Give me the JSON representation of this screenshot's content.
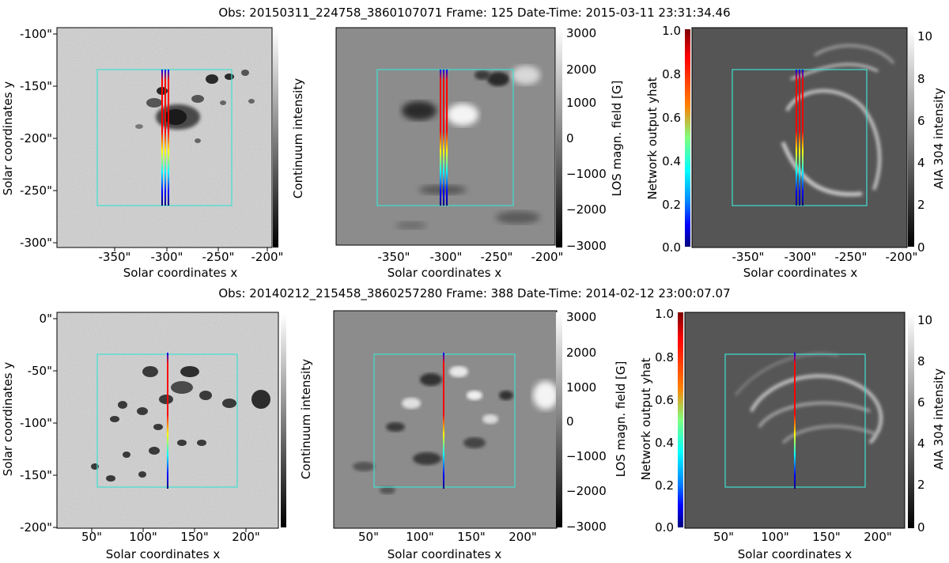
{
  "colors": {
    "overlay": "#40e0d0",
    "jet": [
      "#00007f",
      "#0000ff",
      "#007fff",
      "#00ffff",
      "#7fff7f",
      "#ffff00",
      "#ff7f00",
      "#ff0000",
      "#7f0000"
    ]
  },
  "rows": [
    {
      "header": "Obs: 20150311_224758_3860107071   Frame: 125   Date-Time: 2015-03-11 23:31:34.46",
      "panels": [
        {
          "ylabel": "Solar coordinates y",
          "xlabel": "Solar coordinates x",
          "xticks": [
            "-350\"",
            "-300\"",
            "-250\"",
            "-200\""
          ],
          "yticks": [
            "-100\"",
            "-150\"",
            "-200\"",
            "-250\"",
            "-300\""
          ],
          "cbar_label": "Continuum intensity",
          "cbar_ticks": []
        },
        {
          "xlabel": "Solar coordinates x",
          "xticks": [
            "-350\"",
            "-300\"",
            "-250\"",
            "-200\""
          ],
          "cbar_label": "LOS magn. field [G]",
          "cbar_ticks": [
            "3000",
            "2000",
            "1000",
            "0",
            "−1000",
            "−2000",
            "−3000"
          ]
        },
        {
          "xlabel": "Solar coordinates x",
          "xticks": [
            "-350\"",
            "-300\"",
            "-250\"",
            "-200\""
          ],
          "left_cbar_label": "Network output yhat",
          "left_cbar_ticks": [
            "1.0",
            "0.8",
            "0.6",
            "0.4",
            "0.2",
            "0.0"
          ],
          "cbar_label": "AIA 304 intensity",
          "cbar_ticks": [
            "10",
            "8",
            "6",
            "4",
            "2",
            "0"
          ]
        }
      ]
    },
    {
      "header": "Obs: 20140212_215458_3860257280   Frame: 388   Date-Time: 2014-02-12 23:00:07.07",
      "panels": [
        {
          "ylabel": "Solar coordinates y",
          "xlabel": "Solar coordinates x",
          "xticks": [
            "50\"",
            "100\"",
            "150\"",
            "200\""
          ],
          "yticks": [
            "0\"",
            "-50\"",
            "-100\"",
            "-150\"",
            "-200\""
          ],
          "cbar_label": "Continuum intensity",
          "cbar_ticks": []
        },
        {
          "xlabel": "Solar coordinates x",
          "xticks": [
            "50\"",
            "100\"",
            "150\"",
            "200\""
          ],
          "left_cbar_label": "Continuum intensity",
          "cbar_label": "LOS magn. field [G]",
          "cbar_ticks": [
            "3000",
            "2000",
            "1000",
            "0",
            "−1000",
            "−2000",
            "−3000"
          ]
        },
        {
          "xlabel": "Solar coordinates x",
          "xticks": [
            "50\"",
            "100\"",
            "150\"",
            "200\""
          ],
          "left_cbar_label": "Network output yhat",
          "left_cbar_ticks": [
            "1.0",
            "0.8",
            "0.6",
            "0.4",
            "0.2",
            "0.0"
          ],
          "cbar_label": "AIA 304 intensity",
          "cbar_ticks": [
            "10",
            "8",
            "6",
            "4",
            "2",
            "0"
          ]
        }
      ]
    }
  ],
  "chart_data": [
    {
      "type": "heatmap",
      "title": "Obs: 20150311_224758_3860107071   Frame: 125   Date-Time: 2015-03-11 23:31:34.46",
      "xlabel": "Solar coordinates x",
      "ylabel": "Solar coordinates y",
      "xlim": [
        -395,
        -195
      ],
      "ylim": [
        -305,
        -95
      ],
      "colorbar": "Continuum intensity"
    },
    {
      "type": "heatmap",
      "xlabel": "Solar coordinates x",
      "xlim": [
        -395,
        -195
      ],
      "colorbar": "LOS magn. field [G]",
      "clim": [
        -3000,
        3000
      ]
    },
    {
      "type": "heatmap",
      "xlabel": "Solar coordinates x",
      "xlim": [
        -395,
        -195
      ],
      "colorbar": "AIA 304 intensity",
      "clim": [
        0,
        10
      ],
      "overlay_colorbar": "Network output yhat",
      "overlay_clim": [
        0.0,
        1.0
      ]
    },
    {
      "type": "heatmap",
      "title": "Obs: 20140212_215458_3860257280   Frame: 388   Date-Time: 2014-02-12 23:00:07.07",
      "xlabel": "Solar coordinates x",
      "ylabel": "Solar coordinates y",
      "xlim": [
        12,
        232
      ],
      "ylim": [
        -205,
        2
      ],
      "colorbar": "Continuum intensity"
    },
    {
      "type": "heatmap",
      "xlabel": "Solar coordinates x",
      "xlim": [
        12,
        232
      ],
      "colorbar": "LOS magn. field [G]",
      "clim": [
        -3000,
        3000
      ]
    },
    {
      "type": "heatmap",
      "xlabel": "Solar coordinates x",
      "xlim": [
        12,
        232
      ],
      "colorbar": "AIA 304 intensity",
      "clim": [
        0,
        10
      ],
      "overlay_colorbar": "Network output yhat",
      "overlay_clim": [
        0.0,
        1.0
      ]
    }
  ]
}
